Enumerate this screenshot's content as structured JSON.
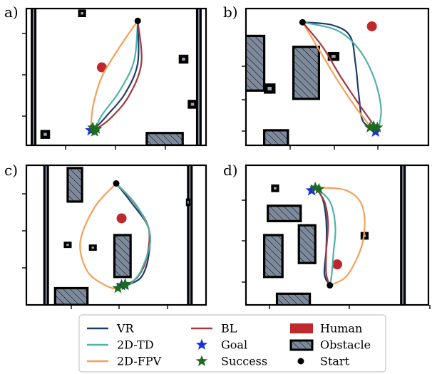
{
  "colors": {
    "VR": "#1f3d6b",
    "2D-TD": "#4fb3a8",
    "2D-FPV": "#f5a05a",
    "BL": "#a23a3e",
    "Human": "#c0282b",
    "Obstacle": "#7d8a9c",
    "Goal": "#1c2fd6",
    "Success": "#1e6b1e",
    "Start": "#000000"
  },
  "legend": {
    "entries": [
      {
        "key": "VR",
        "label": "VR",
        "kind": "line"
      },
      {
        "key": "2D-TD",
        "label": "2D-TD",
        "kind": "line"
      },
      {
        "key": "2D-FPV",
        "label": "2D-FPV",
        "kind": "line"
      },
      {
        "key": "BL",
        "label": "BL",
        "kind": "line"
      },
      {
        "key": "Goal",
        "label": "Goal",
        "kind": "star"
      },
      {
        "key": "Success",
        "label": "Success",
        "kind": "star"
      },
      {
        "key": "Human",
        "label": "Human",
        "kind": "rect"
      },
      {
        "key": "Obstacle",
        "label": "Obstacle",
        "kind": "hatch"
      },
      {
        "key": "Start",
        "label": "Start",
        "kind": "dot"
      }
    ]
  },
  "chart_data": [
    {
      "type": "scatter",
      "panel_label": "a)",
      "xlim": [
        0,
        100
      ],
      "ylim": [
        0,
        100
      ],
      "walls": [
        {
          "x": 4
        },
        {
          "x": 96
        }
      ],
      "obstacles": [
        {
          "x": 29,
          "y": 94,
          "w": 4,
          "h": 5
        },
        {
          "x": 85,
          "y": 60,
          "w": 5,
          "h": 6
        },
        {
          "x": 90,
          "y": 27,
          "w": 5,
          "h": 6
        },
        {
          "x": 8,
          "y": 5,
          "w": 5,
          "h": 6
        },
        {
          "x": 67,
          "y": 0,
          "w": 20,
          "h": 9
        }
      ],
      "human": {
        "x": 42,
        "y": 57
      },
      "start": {
        "x": 62,
        "y": 91
      },
      "goal": {
        "x": 36,
        "y": 11
      },
      "success": [
        {
          "x": 38,
          "y": 10
        },
        {
          "x": 37,
          "y": 13
        },
        {
          "x": 39,
          "y": 12
        }
      ],
      "series": [
        {
          "key": "2D-FPV",
          "x": [
            62,
            52,
            42,
            37,
            36
          ],
          "y": [
            91,
            72,
            50,
            28,
            12
          ]
        },
        {
          "key": "2D-TD",
          "x": [
            62,
            60,
            52,
            42,
            38
          ],
          "y": [
            91,
            62,
            40,
            22,
            11
          ]
        },
        {
          "key": "VR",
          "x": [
            62,
            62,
            55,
            45,
            38
          ],
          "y": [
            91,
            60,
            38,
            22,
            12
          ]
        },
        {
          "key": "BL",
          "x": [
            62,
            64,
            57,
            47,
            38
          ],
          "y": [
            91,
            60,
            36,
            20,
            11
          ]
        }
      ]
    },
    {
      "type": "scatter",
      "panel_label": "b)",
      "xlim": [
        0,
        100
      ],
      "ylim": [
        0,
        100
      ],
      "walls": [],
      "obstacles": [
        {
          "x": -2,
          "y": 40,
          "w": 12,
          "h": 40
        },
        {
          "x": 10,
          "y": 38,
          "w": 6,
          "h": 7
        },
        {
          "x": 26,
          "y": 34,
          "w": 14,
          "h": 38
        },
        {
          "x": 45,
          "y": 62,
          "w": 6,
          "h": 6
        },
        {
          "x": 10,
          "y": 0,
          "w": 13,
          "h": 11
        }
      ],
      "human": {
        "x": 69,
        "y": 87
      },
      "start": {
        "x": 31,
        "y": 90
      },
      "goal": {
        "x": 71,
        "y": 10
      },
      "success": [
        {
          "x": 68,
          "y": 13
        },
        {
          "x": 72,
          "y": 13
        },
        {
          "x": 70,
          "y": 14
        }
      ],
      "series": [
        {
          "key": "VR",
          "x": [
            31,
            47,
            57,
            60,
            62,
            64,
            70
          ],
          "y": [
            90,
            88,
            80,
            60,
            35,
            18,
            12
          ]
        },
        {
          "key": "2D-TD",
          "x": [
            31,
            50,
            62,
            70,
            74,
            73
          ],
          "y": [
            90,
            84,
            70,
            50,
            28,
            14
          ]
        },
        {
          "key": "2D-FPV",
          "x": [
            31,
            40,
            50,
            60,
            68
          ],
          "y": [
            90,
            70,
            48,
            28,
            14
          ]
        },
        {
          "key": "BL",
          "x": [
            31,
            42,
            52,
            62,
            71
          ],
          "y": [
            90,
            72,
            50,
            30,
            13
          ]
        }
      ]
    },
    {
      "type": "scatter",
      "panel_label": "c)",
      "xlim": [
        0,
        100
      ],
      "ylim": [
        0,
        100
      ],
      "walls": [
        {
          "x": 11
        },
        {
          "x": 91
        }
      ],
      "obstacles": [
        {
          "x": 23,
          "y": 74,
          "w": 8,
          "h": 24
        },
        {
          "x": 21,
          "y": 41,
          "w": 4,
          "h": 4
        },
        {
          "x": 35,
          "y": 39,
          "w": 4,
          "h": 4
        },
        {
          "x": 49,
          "y": 20,
          "w": 9,
          "h": 30
        },
        {
          "x": 16,
          "y": 0,
          "w": 18,
          "h": 12
        },
        {
          "x": 89,
          "y": 71,
          "w": 2,
          "h": 5
        }
      ],
      "human": {
        "x": 53,
        "y": 62
      },
      "start": {
        "x": 50,
        "y": 87
      },
      "goal": {
        "x": 53,
        "y": 14
      },
      "success": [
        {
          "x": 55,
          "y": 15
        },
        {
          "x": 51,
          "y": 12
        },
        {
          "x": 55,
          "y": 14
        }
      ],
      "series": [
        {
          "key": "2D-FPV",
          "x": [
            50,
            38,
            30,
            34,
            44,
            51
          ],
          "y": [
            87,
            70,
            45,
            24,
            14,
            11
          ]
        },
        {
          "key": "VR",
          "x": [
            50,
            58,
            68,
            68,
            64,
            56
          ],
          "y": [
            87,
            74,
            55,
            35,
            20,
            14
          ]
        },
        {
          "key": "BL",
          "x": [
            50,
            60,
            68,
            67,
            62,
            55
          ],
          "y": [
            87,
            73,
            55,
            34,
            20,
            14
          ]
        },
        {
          "key": "2D-TD",
          "x": [
            50,
            62,
            69,
            64,
            58
          ],
          "y": [
            87,
            70,
            48,
            25,
            15
          ]
        }
      ]
    },
    {
      "type": "scatter",
      "panel_label": "d)",
      "xlim": [
        0,
        100
      ],
      "ylim": [
        0,
        100
      ],
      "walls": [
        {
          "x": 86
        }
      ],
      "obstacles": [
        {
          "x": 14,
          "y": 81,
          "w": 4,
          "h": 5
        },
        {
          "x": 12,
          "y": 60,
          "w": 18,
          "h": 11
        },
        {
          "x": 10,
          "y": 20,
          "w": 10,
          "h": 30
        },
        {
          "x": 29,
          "y": 30,
          "w": 9,
          "h": 27
        },
        {
          "x": 63,
          "y": 47,
          "w": 4,
          "h": 5
        },
        {
          "x": 17,
          "y": -2,
          "w": 18,
          "h": 10
        }
      ],
      "human": {
        "x": 50,
        "y": 29
      },
      "start": {
        "x": 46,
        "y": 14
      },
      "goal": {
        "x": 36,
        "y": 82
      },
      "success": [
        {
          "x": 38,
          "y": 84
        },
        {
          "x": 40,
          "y": 83
        }
      ],
      "series": [
        {
          "key": "2D-FPV",
          "x": [
            38,
            55,
            64,
            64,
            56,
            48,
            46
          ],
          "y": [
            84,
            82,
            70,
            45,
            22,
            15,
            14
          ]
        },
        {
          "key": "VR",
          "x": [
            38,
            42,
            44,
            44,
            43,
            46
          ],
          "y": [
            84,
            76,
            60,
            40,
            22,
            14
          ]
        },
        {
          "key": "BL",
          "x": [
            38,
            43,
            45,
            44,
            44,
            46
          ],
          "y": [
            84,
            74,
            58,
            38,
            22,
            14
          ]
        },
        {
          "key": "2D-TD",
          "x": [
            38,
            46,
            49,
            48,
            47,
            46
          ],
          "y": [
            84,
            74,
            56,
            38,
            22,
            14
          ]
        }
      ]
    }
  ]
}
